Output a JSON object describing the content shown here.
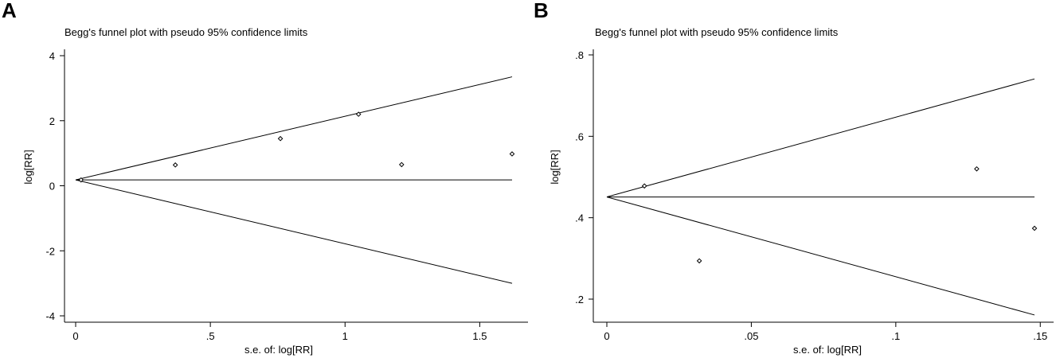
{
  "panels": [
    {
      "letter": "A"
    },
    {
      "letter": "B"
    }
  ],
  "chart_data": [
    {
      "type": "scatter",
      "title": "Begg's funnel plot with pseudo 95% confidence limits",
      "xlabel": "s.e. of: log[RR]",
      "ylabel": "log[RR]",
      "xlim": [
        0,
        1.62
      ],
      "ylim": [
        -4,
        4
      ],
      "xticks": [
        0,
        0.5,
        1,
        1.5
      ],
      "xtick_labels": [
        "0",
        ".5",
        "1",
        "1.5"
      ],
      "yticks": [
        -4,
        -2,
        0,
        2,
        4
      ],
      "ytick_labels": [
        "-4",
        "-2",
        "0",
        "2",
        "4"
      ],
      "pooled_estimate": 0.18,
      "pseudo_95_limits": {
        "upper_at_max_se": 3.35,
        "lower_at_max_se": -3.0
      },
      "points": [
        {
          "x": 0.02,
          "y": 0.18
        },
        {
          "x": 0.37,
          "y": 0.64
        },
        {
          "x": 0.76,
          "y": 1.45
        },
        {
          "x": 1.05,
          "y": 2.2
        },
        {
          "x": 1.21,
          "y": 0.65
        },
        {
          "x": 1.62,
          "y": 0.98
        }
      ]
    },
    {
      "type": "scatter",
      "title": "Begg's funnel plot with pseudo 95% confidence limits",
      "xlabel": "s.e. of: log[RR]",
      "ylabel": "log[RR]",
      "xlim": [
        0,
        0.148
      ],
      "ylim": [
        0.2,
        0.8
      ],
      "xticks": [
        0,
        0.05,
        0.1,
        0.15
      ],
      "xtick_labels": [
        "0",
        ".05",
        ".1",
        ".15"
      ],
      "yticks": [
        0.2,
        0.4,
        0.6,
        0.8
      ],
      "ytick_labels": [
        ".2",
        ".4",
        ".6",
        ".8"
      ],
      "pooled_estimate": 0.451,
      "pseudo_95_limits": {
        "upper_at_max_se": 0.741,
        "lower_at_max_se": 0.161
      },
      "points": [
        {
          "x": 0.013,
          "y": 0.478
        },
        {
          "x": 0.032,
          "y": 0.294
        },
        {
          "x": 0.128,
          "y": 0.52
        },
        {
          "x": 0.148,
          "y": 0.374
        }
      ]
    }
  ]
}
